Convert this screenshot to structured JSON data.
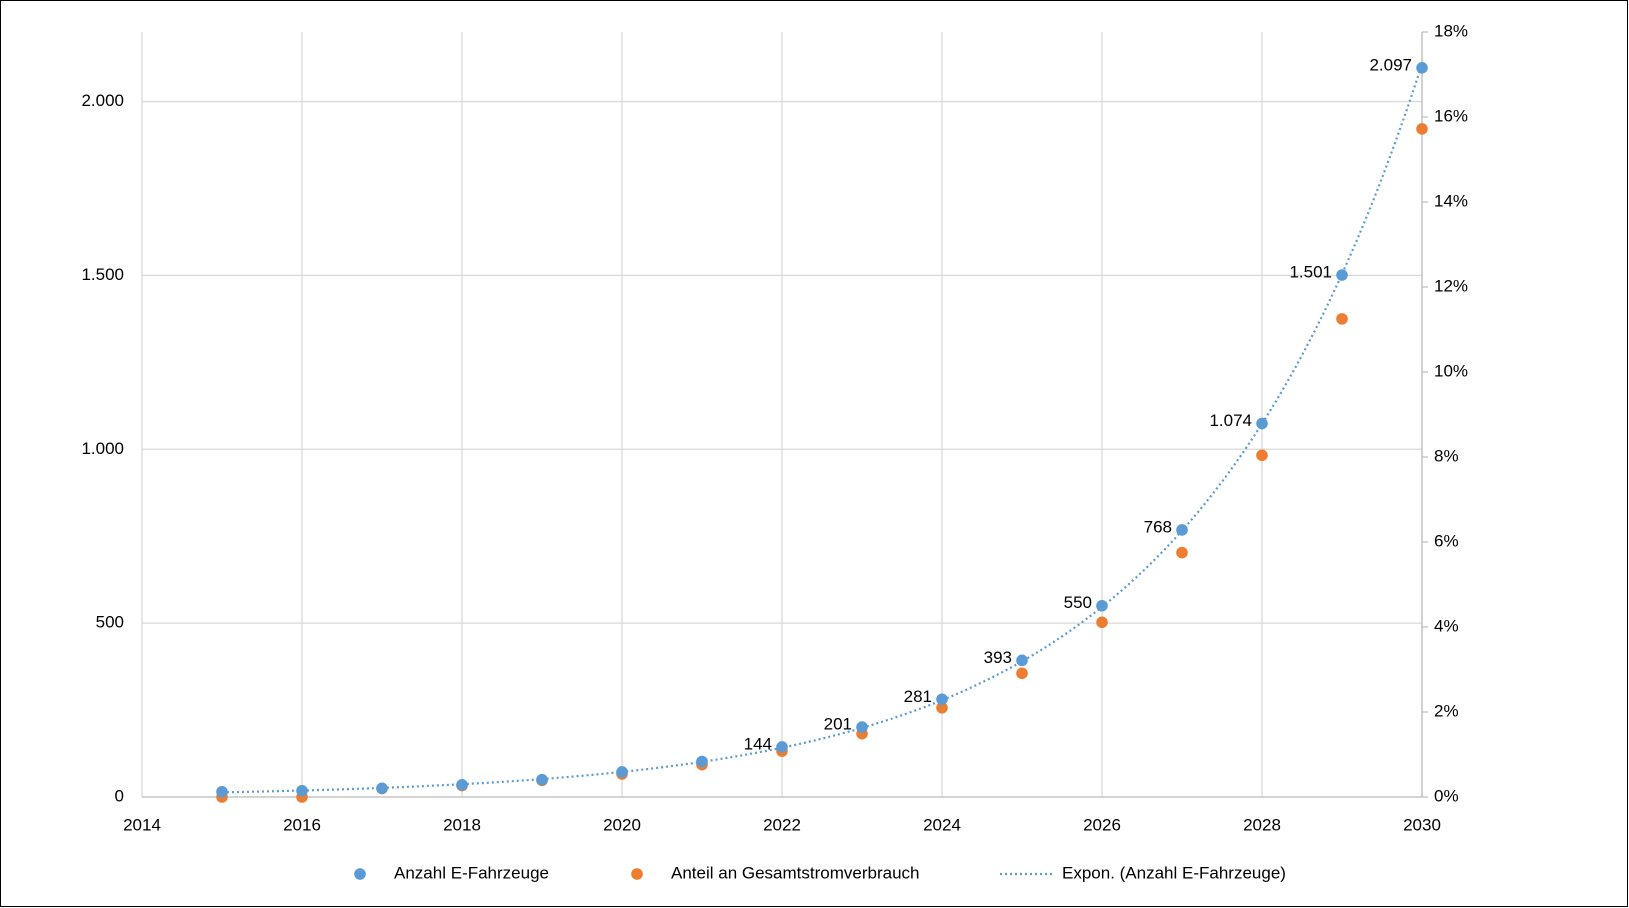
{
  "chart_data": {
    "type": "scatter",
    "x": [
      2015,
      2016,
      2017,
      2018,
      2019,
      2020,
      2021,
      2022,
      2023,
      2024,
      2025,
      2026,
      2027,
      2028,
      2029,
      2030
    ],
    "series": [
      {
        "name": "Anzahl E-Fahrzeuge",
        "color": "#5b9bd5",
        "values": [
          15,
          18,
          25,
          35,
          50,
          72,
          102,
          144,
          201,
          281,
          393,
          550,
          768,
          1074,
          1501,
          2097
        ],
        "value_labels": [
          null,
          null,
          null,
          null,
          null,
          null,
          null,
          "144",
          "201",
          "281",
          "393",
          "550",
          "768",
          "1.074",
          "1.501",
          "2.097"
        ],
        "trendline": {
          "name": "Expon. (Anzahl E-Fahrzeuge)",
          "kind": "exponential",
          "color": "#5b9bd5"
        }
      },
      {
        "name": "Anteil an Gesamtstromverbrauch",
        "color": "#ed7d31",
        "axis": "y2",
        "values": [
          0,
          0,
          0.2,
          0.27,
          0.39,
          0.54,
          0.76,
          1.08,
          1.49,
          2.1,
          2.91,
          4.11,
          5.75,
          8.04,
          11.25,
          15.72
        ]
      }
    ],
    "xlim": [
      2014,
      2030
    ],
    "xticks": [
      2014,
      2016,
      2018,
      2020,
      2022,
      2024,
      2026,
      2028,
      2030
    ],
    "ylim": [
      0,
      2200
    ],
    "yticks": [
      0,
      500,
      {
        "value": 1000,
        "label": "1.000"
      },
      {
        "value": 1500,
        "label": "1.500"
      },
      {
        "value": 2000,
        "label": "2.000"
      }
    ],
    "y2lim": [
      0,
      18
    ],
    "y2ticks": [
      {
        "value": 0,
        "label": "0%"
      },
      {
        "value": 2,
        "label": "2%"
      },
      {
        "value": 4,
        "label": "4%"
      },
      {
        "value": 6,
        "label": "6%"
      },
      {
        "value": 8,
        "label": "8%"
      },
      {
        "value": 10,
        "label": "10%"
      },
      {
        "value": 12,
        "label": "12%"
      },
      {
        "value": 14,
        "label": "14%"
      },
      {
        "value": 16,
        "label": "16%"
      },
      {
        "value": 18,
        "label": "18%"
      }
    ],
    "grid": true,
    "legend": "bottom"
  }
}
